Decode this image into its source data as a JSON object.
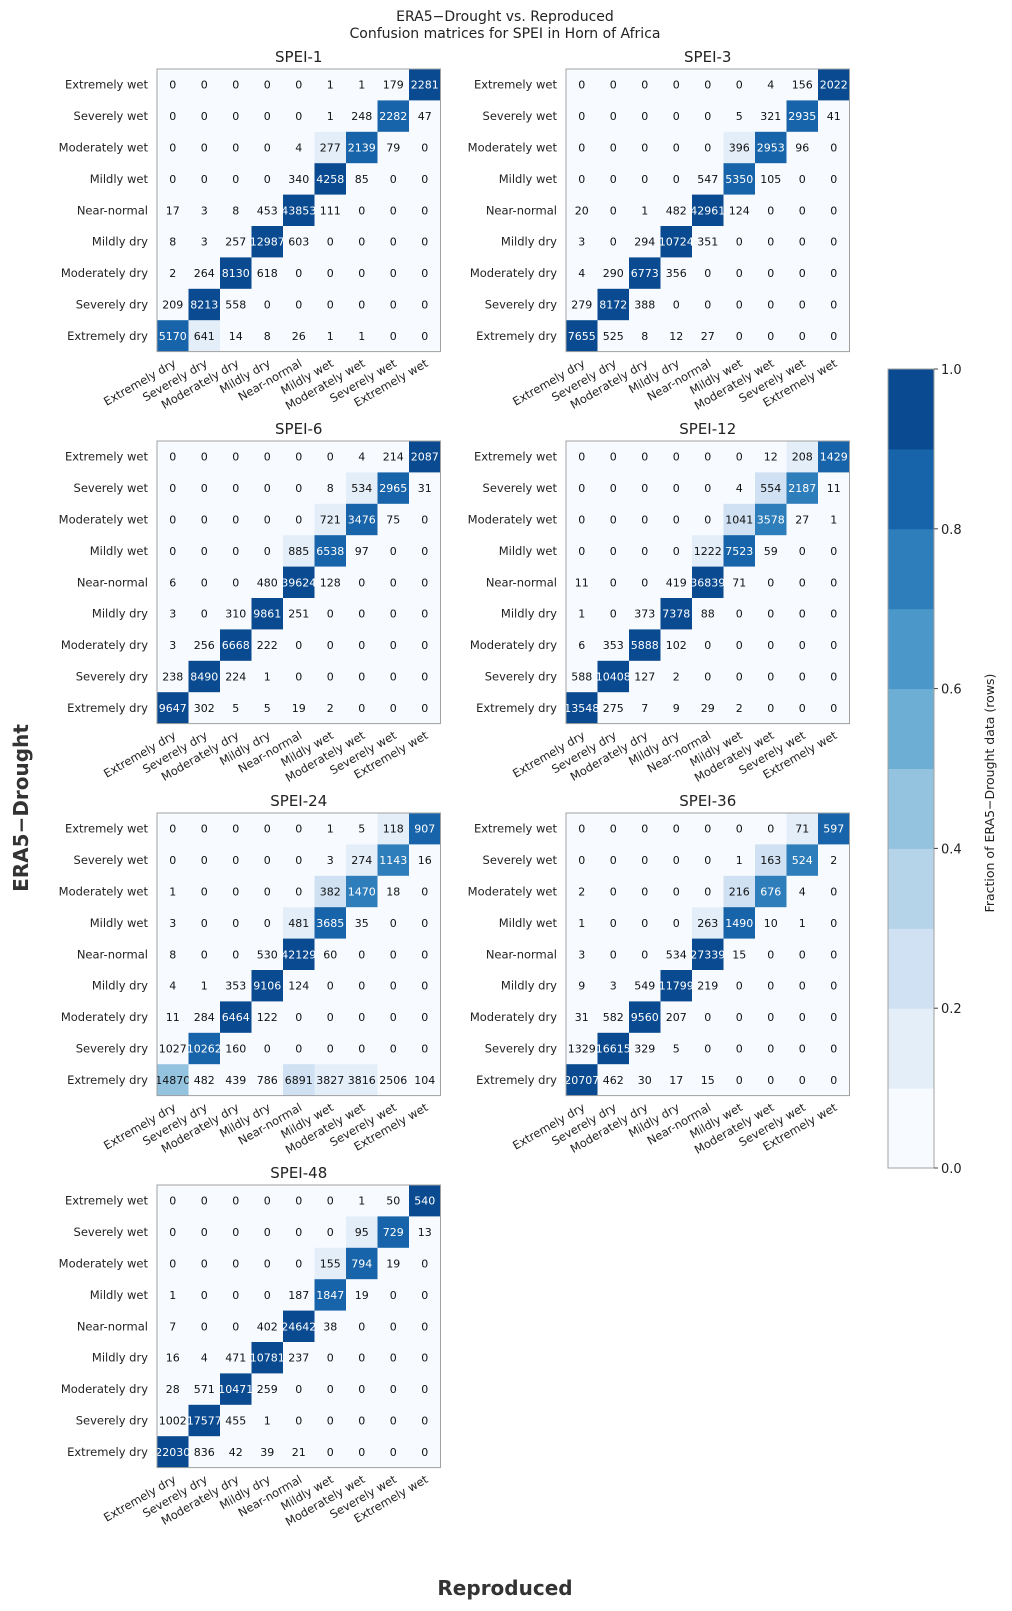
{
  "figure": {
    "title_line1": "ERA5−Drought vs. Reproduced",
    "title_line2": "Confusion matrices for SPEI in Horn of Africa",
    "xlabel": "Reproduced",
    "ylabel": "ERA5−Drought"
  },
  "colorbar": {
    "label": "Fraction of ERA5−Drought data (rows)",
    "ticks": [
      "0.0",
      "0.2",
      "0.4",
      "0.6",
      "0.8",
      "1.0"
    ],
    "bins": 10,
    "colors": [
      "#f7fbff",
      "#e3eef9",
      "#cfe1f2",
      "#b5d4e9",
      "#93c3df",
      "#6daed5",
      "#4b97c9",
      "#2f7ebc",
      "#1864aa",
      "#0a4a90",
      "#08306b"
    ]
  },
  "chart_data": {
    "type": "heatmap",
    "categories": [
      "Extremely dry",
      "Severely dry",
      "Moderately dry",
      "Mildly dry",
      "Near-normal",
      "Mildly wet",
      "Moderately wet",
      "Severely wet",
      "Extremely wet"
    ],
    "row_labels_top_to_bottom": [
      "Extremely wet",
      "Severely wet",
      "Moderately wet",
      "Mildly wet",
      "Near-normal",
      "Mildly dry",
      "Moderately dry",
      "Severely dry",
      "Extremely dry"
    ],
    "col_labels_left_to_right": [
      "Extremely dry",
      "Severely dry",
      "Moderately dry",
      "Mildly dry",
      "Near-normal",
      "Mildly wet",
      "Moderately wet",
      "Severely wet",
      "Extremely wet"
    ],
    "panels": [
      {
        "title": "SPEI-1",
        "matrix": [
          [
            0,
            0,
            0,
            0,
            0,
            1,
            1,
            179,
            2281
          ],
          [
            0,
            0,
            0,
            0,
            0,
            1,
            248,
            2282,
            47
          ],
          [
            0,
            0,
            0,
            0,
            4,
            277,
            2139,
            79,
            0
          ],
          [
            0,
            0,
            0,
            0,
            340,
            4258,
            85,
            0,
            0
          ],
          [
            17,
            3,
            8,
            453,
            43853,
            111,
            0,
            0,
            0
          ],
          [
            8,
            3,
            257,
            12987,
            603,
            0,
            0,
            0,
            0
          ],
          [
            2,
            264,
            8130,
            618,
            0,
            0,
            0,
            0,
            0
          ],
          [
            209,
            8213,
            558,
            0,
            0,
            0,
            0,
            0,
            0
          ],
          [
            5170,
            641,
            14,
            8,
            26,
            1,
            1,
            0,
            0
          ]
        ]
      },
      {
        "title": "SPEI-3",
        "matrix": [
          [
            0,
            0,
            0,
            0,
            0,
            0,
            4,
            156,
            2022
          ],
          [
            0,
            0,
            0,
            0,
            0,
            5,
            321,
            2935,
            41
          ],
          [
            0,
            0,
            0,
            0,
            0,
            396,
            2953,
            96,
            0
          ],
          [
            0,
            0,
            0,
            0,
            547,
            5350,
            105,
            0,
            0
          ],
          [
            20,
            0,
            1,
            482,
            42961,
            124,
            0,
            0,
            0
          ],
          [
            3,
            0,
            294,
            10724,
            351,
            0,
            0,
            0,
            0
          ],
          [
            4,
            290,
            6773,
            356,
            0,
            0,
            0,
            0,
            0
          ],
          [
            279,
            8172,
            388,
            0,
            0,
            0,
            0,
            0,
            0
          ],
          [
            7655,
            525,
            8,
            12,
            27,
            0,
            0,
            0,
            0
          ]
        ]
      },
      {
        "title": "SPEI-6",
        "matrix": [
          [
            0,
            0,
            0,
            0,
            0,
            0,
            4,
            214,
            2087
          ],
          [
            0,
            0,
            0,
            0,
            0,
            8,
            534,
            2965,
            31
          ],
          [
            0,
            0,
            0,
            0,
            0,
            721,
            3476,
            75,
            0
          ],
          [
            0,
            0,
            0,
            0,
            885,
            6538,
            97,
            0,
            0
          ],
          [
            6,
            0,
            0,
            480,
            39624,
            128,
            0,
            0,
            0
          ],
          [
            3,
            0,
            310,
            9861,
            251,
            0,
            0,
            0,
            0
          ],
          [
            3,
            256,
            6668,
            222,
            0,
            0,
            0,
            0,
            0
          ],
          [
            238,
            8490,
            224,
            1,
            0,
            0,
            0,
            0,
            0
          ],
          [
            9647,
            302,
            5,
            5,
            19,
            2,
            0,
            0,
            0
          ]
        ]
      },
      {
        "title": "SPEI-12",
        "matrix": [
          [
            0,
            0,
            0,
            0,
            0,
            0,
            12,
            208,
            1429
          ],
          [
            0,
            0,
            0,
            0,
            0,
            4,
            554,
            2187,
            11
          ],
          [
            0,
            0,
            0,
            0,
            0,
            1041,
            3578,
            27,
            1
          ],
          [
            0,
            0,
            0,
            0,
            1222,
            7523,
            59,
            0,
            0
          ],
          [
            11,
            0,
            0,
            419,
            36839,
            71,
            0,
            0,
            0
          ],
          [
            1,
            0,
            373,
            7378,
            88,
            0,
            0,
            0,
            0
          ],
          [
            6,
            353,
            5888,
            102,
            0,
            0,
            0,
            0,
            0
          ],
          [
            588,
            10408,
            127,
            2,
            0,
            0,
            0,
            0,
            0
          ],
          [
            13548,
            275,
            7,
            9,
            29,
            2,
            0,
            0,
            0
          ]
        ]
      },
      {
        "title": "SPEI-24",
        "matrix": [
          [
            0,
            0,
            0,
            0,
            0,
            1,
            5,
            118,
            907
          ],
          [
            0,
            0,
            0,
            0,
            0,
            3,
            274,
            1143,
            16
          ],
          [
            1,
            0,
            0,
            0,
            0,
            382,
            1470,
            18,
            0
          ],
          [
            3,
            0,
            0,
            0,
            481,
            3685,
            35,
            0,
            0
          ],
          [
            8,
            0,
            0,
            530,
            42129,
            60,
            0,
            0,
            0
          ],
          [
            4,
            1,
            353,
            9106,
            124,
            0,
            0,
            0,
            0
          ],
          [
            11,
            284,
            6464,
            122,
            0,
            0,
            0,
            0,
            0
          ],
          [
            1027,
            10262,
            160,
            0,
            0,
            0,
            0,
            0,
            0
          ],
          [
            14870,
            482,
            439,
            786,
            6891,
            3827,
            3816,
            2506,
            104
          ]
        ]
      },
      {
        "title": "SPEI-36",
        "matrix": [
          [
            0,
            0,
            0,
            0,
            0,
            0,
            0,
            71,
            597
          ],
          [
            0,
            0,
            0,
            0,
            0,
            1,
            163,
            524,
            2
          ],
          [
            2,
            0,
            0,
            0,
            0,
            216,
            676,
            4,
            0
          ],
          [
            1,
            0,
            0,
            0,
            263,
            1490,
            10,
            1,
            0
          ],
          [
            3,
            0,
            0,
            534,
            27339,
            15,
            0,
            0,
            0
          ],
          [
            9,
            3,
            549,
            11799,
            219,
            0,
            0,
            0,
            0
          ],
          [
            31,
            582,
            9560,
            207,
            0,
            0,
            0,
            0,
            0
          ],
          [
            1329,
            16615,
            329,
            5,
            0,
            0,
            0,
            0,
            0
          ],
          [
            20707,
            462,
            30,
            17,
            15,
            0,
            0,
            0,
            0
          ]
        ]
      },
      {
        "title": "SPEI-48",
        "matrix": [
          [
            0,
            0,
            0,
            0,
            0,
            0,
            1,
            50,
            540
          ],
          [
            0,
            0,
            0,
            0,
            0,
            0,
            95,
            729,
            13
          ],
          [
            0,
            0,
            0,
            0,
            0,
            155,
            794,
            19,
            0
          ],
          [
            1,
            0,
            0,
            0,
            187,
            1847,
            19,
            0,
            0
          ],
          [
            7,
            0,
            0,
            402,
            24642,
            38,
            0,
            0,
            0
          ],
          [
            16,
            4,
            471,
            10781,
            237,
            0,
            0,
            0,
            0
          ],
          [
            28,
            571,
            10471,
            259,
            0,
            0,
            0,
            0,
            0
          ],
          [
            1002,
            17577,
            455,
            1,
            0,
            0,
            0,
            0,
            0
          ],
          [
            22030,
            836,
            42,
            39,
            21,
            0,
            0,
            0,
            0
          ]
        ]
      }
    ]
  }
}
